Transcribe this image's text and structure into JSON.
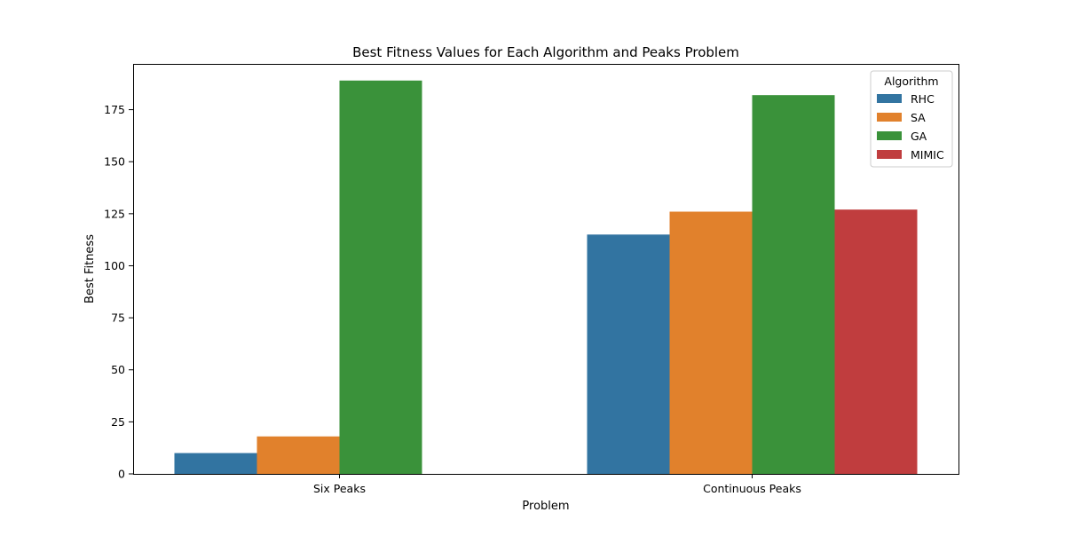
{
  "chart_data": {
    "type": "bar",
    "title": "Best Fitness Values for Each Algorithm and Peaks Problem",
    "xlabel": "Problem",
    "ylabel": "Best Fitness",
    "categories": [
      "Six Peaks",
      "Continuous Peaks"
    ],
    "ylim": [
      0,
      197
    ],
    "yticks": [
      0,
      25,
      50,
      75,
      100,
      125,
      150,
      175
    ],
    "grid": false,
    "legend": {
      "title": "Algorithm",
      "placement": "top-right"
    },
    "series": [
      {
        "name": "RHC",
        "color": "#3274a1",
        "values": [
          10,
          115
        ]
      },
      {
        "name": "SA",
        "color": "#e1812c",
        "values": [
          18,
          126
        ]
      },
      {
        "name": "GA",
        "color": "#3a923a",
        "values": [
          189,
          182
        ]
      },
      {
        "name": "MIMIC",
        "color": "#c03d3e",
        "values": [
          0,
          127
        ]
      }
    ]
  }
}
